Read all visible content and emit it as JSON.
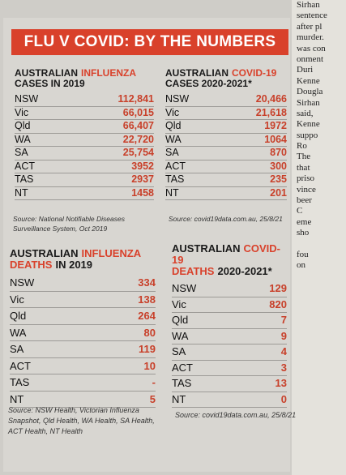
{
  "title": "FLU V COVID: BY THE NUMBERS",
  "tables": [
    {
      "heading": [
        [
          {
            "text": "AUSTRALIAN",
            "red": false
          },
          {
            "text": "INFLUENZA",
            "red": true
          }
        ],
        [
          {
            "text": "CASES IN 2019",
            "red": false
          }
        ]
      ],
      "rows": [
        [
          "NSW",
          "112,841"
        ],
        [
          "Vic",
          "66,015"
        ],
        [
          "Qld",
          "66,407"
        ],
        [
          "WA",
          "22,720"
        ],
        [
          "SA",
          "25,754"
        ],
        [
          "ACT",
          "3952"
        ],
        [
          "TAS",
          "2937"
        ],
        [
          "NT",
          "1458"
        ]
      ],
      "source": "Source: National Notifiable Diseases Surveillance System, Oct 2019"
    },
    {
      "heading": [
        [
          {
            "text": "AUSTRALIAN",
            "red": false
          },
          {
            "text": "COVID-19",
            "red": true
          }
        ],
        [
          {
            "text": "CASES 2020-2021*",
            "red": false
          }
        ]
      ],
      "rows": [
        [
          "NSW",
          "20,466"
        ],
        [
          "Vic",
          "21,618"
        ],
        [
          "Qld",
          "1972"
        ],
        [
          "WA",
          "1064"
        ],
        [
          "SA",
          "870"
        ],
        [
          "ACT",
          "300"
        ],
        [
          "TAS",
          "235"
        ],
        [
          "NT",
          "201"
        ]
      ],
      "source": "Source: covid19data.com.au, 25/8/21"
    },
    {
      "heading": [
        [
          {
            "text": "AUSTRALIAN",
            "red": false
          },
          {
            "text": "INFLUENZA",
            "red": true
          }
        ],
        [
          {
            "text": "DEATHS",
            "red": true
          },
          {
            "text": "IN 2019",
            "red": false
          }
        ]
      ],
      "rows": [
        [
          "NSW",
          "334"
        ],
        [
          "Vic",
          "138"
        ],
        [
          "Qld",
          "264"
        ],
        [
          "WA",
          "80"
        ],
        [
          "SA",
          "119"
        ],
        [
          "ACT",
          "10"
        ],
        [
          "TAS",
          "-"
        ],
        [
          "NT",
          "5"
        ]
      ],
      "source": "Source: NSW Health, Victorian Influenza Snapshot, Qld Health, WA Health, SA Health, ACT Health, NT Health"
    },
    {
      "heading": [
        [
          {
            "text": "AUSTRALIAN",
            "red": false
          },
          {
            "text": "COVID-19",
            "red": true
          }
        ],
        [
          {
            "text": "DEATHS",
            "red": true
          },
          {
            "text": "2020-2021*",
            "red": false
          }
        ]
      ],
      "rows": [
        [
          "NSW",
          "129"
        ],
        [
          "Vic",
          "820"
        ],
        [
          "Qld",
          "7"
        ],
        [
          "WA",
          "9"
        ],
        [
          "SA",
          "4"
        ],
        [
          "ACT",
          "3"
        ],
        [
          "TAS",
          "13"
        ],
        [
          "NT",
          "0"
        ]
      ],
      "source": "Source: covid19data.com.au, 25/8/21"
    }
  ],
  "side_column": [
    "Sirhan",
    "sentence",
    "after pl",
    "murder.",
    "was con",
    "onment",
    "Duri",
    "Kenne",
    "Dougla",
    "Sirhan",
    "said,",
    "Kenne",
    "suppo",
    "Ro",
    "The",
    "that",
    "priso",
    "vince",
    "beer",
    "C",
    "eme",
    "sho",
    "",
    "fou",
    "on"
  ]
}
